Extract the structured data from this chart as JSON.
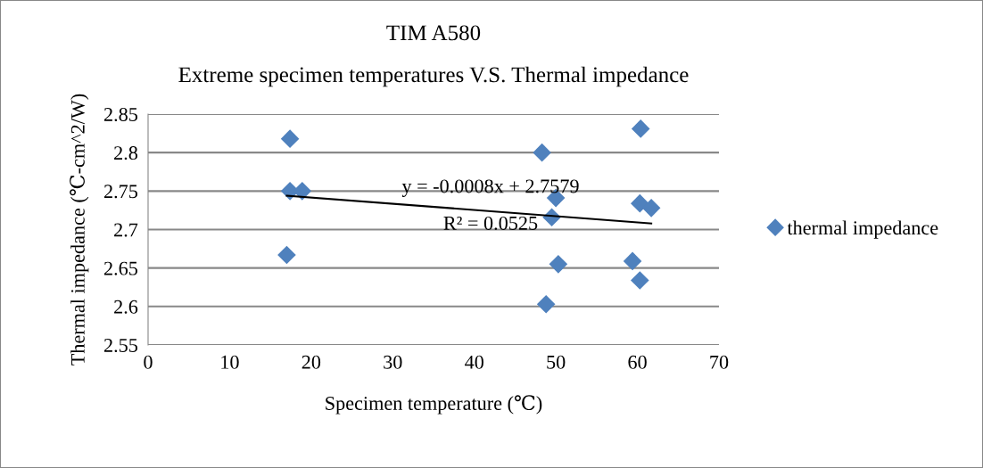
{
  "chart_data": {
    "type": "scatter",
    "title": "TIM A580",
    "subtitle": "Extreme specimen temperatures V.S. Thermal impedance",
    "xlabel": "Specimen temperature (℃)",
    "ylabel": "Thermal impedance (℃-cm^2/W)",
    "series": [
      {
        "name": "thermal impedance",
        "color": "#4f81bd",
        "marker": "diamond",
        "x": [
          17.4,
          17.4,
          18.9,
          17.0,
          48.3,
          50.0,
          49.5,
          50.3,
          48.8,
          60.4,
          60.3,
          61.7,
          59.4,
          60.3
        ],
        "values": [
          2.818,
          2.75,
          2.75,
          2.667,
          2.8,
          2.741,
          2.716,
          2.655,
          2.603,
          2.831,
          2.734,
          2.728,
          2.659,
          2.634
        ]
      },
      {
        "type": "line",
        "color": "#000000",
        "x": [
          17.0,
          61.7
        ],
        "values": [
          2.744,
          2.708
        ]
      }
    ],
    "annotations": [
      "y = -0.0008x + 2.7579",
      "R² = 0.0525"
    ],
    "xlim": [
      0,
      70
    ],
    "xticks": [
      0,
      10,
      20,
      30,
      40,
      50,
      60,
      70
    ],
    "ylim": [
      2.55,
      2.85
    ],
    "yticks": [
      2.55,
      2.6,
      2.65,
      2.7,
      2.75,
      2.8,
      2.85
    ],
    "grid": "y",
    "legend": "right"
  }
}
